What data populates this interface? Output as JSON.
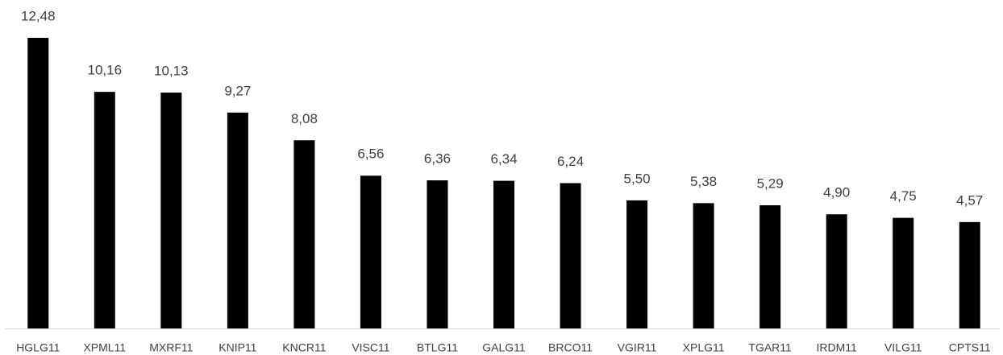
{
  "chart_data": {
    "type": "bar",
    "categories": [
      "HGLG11",
      "XPML11",
      "MXRF11",
      "KNIP11",
      "KNCR11",
      "VISC11",
      "BTLG11",
      "GALG11",
      "BRCO11",
      "VGIR11",
      "XPLG11",
      "TGAR11",
      "IRDM11",
      "VILG11",
      "CPTS11"
    ],
    "values": [
      12.48,
      10.16,
      10.13,
      9.27,
      8.08,
      6.56,
      6.36,
      6.34,
      6.24,
      5.5,
      5.38,
      5.29,
      4.9,
      4.75,
      4.57
    ],
    "value_labels": [
      "12,48",
      "10,16",
      "10,13",
      "9,27",
      "8,08",
      "6,56",
      "6,36",
      "6,34",
      "6,24",
      "5,50",
      "5,38",
      "5,29",
      "4,90",
      "4,75",
      "4,57"
    ],
    "color": "#000000"
  }
}
